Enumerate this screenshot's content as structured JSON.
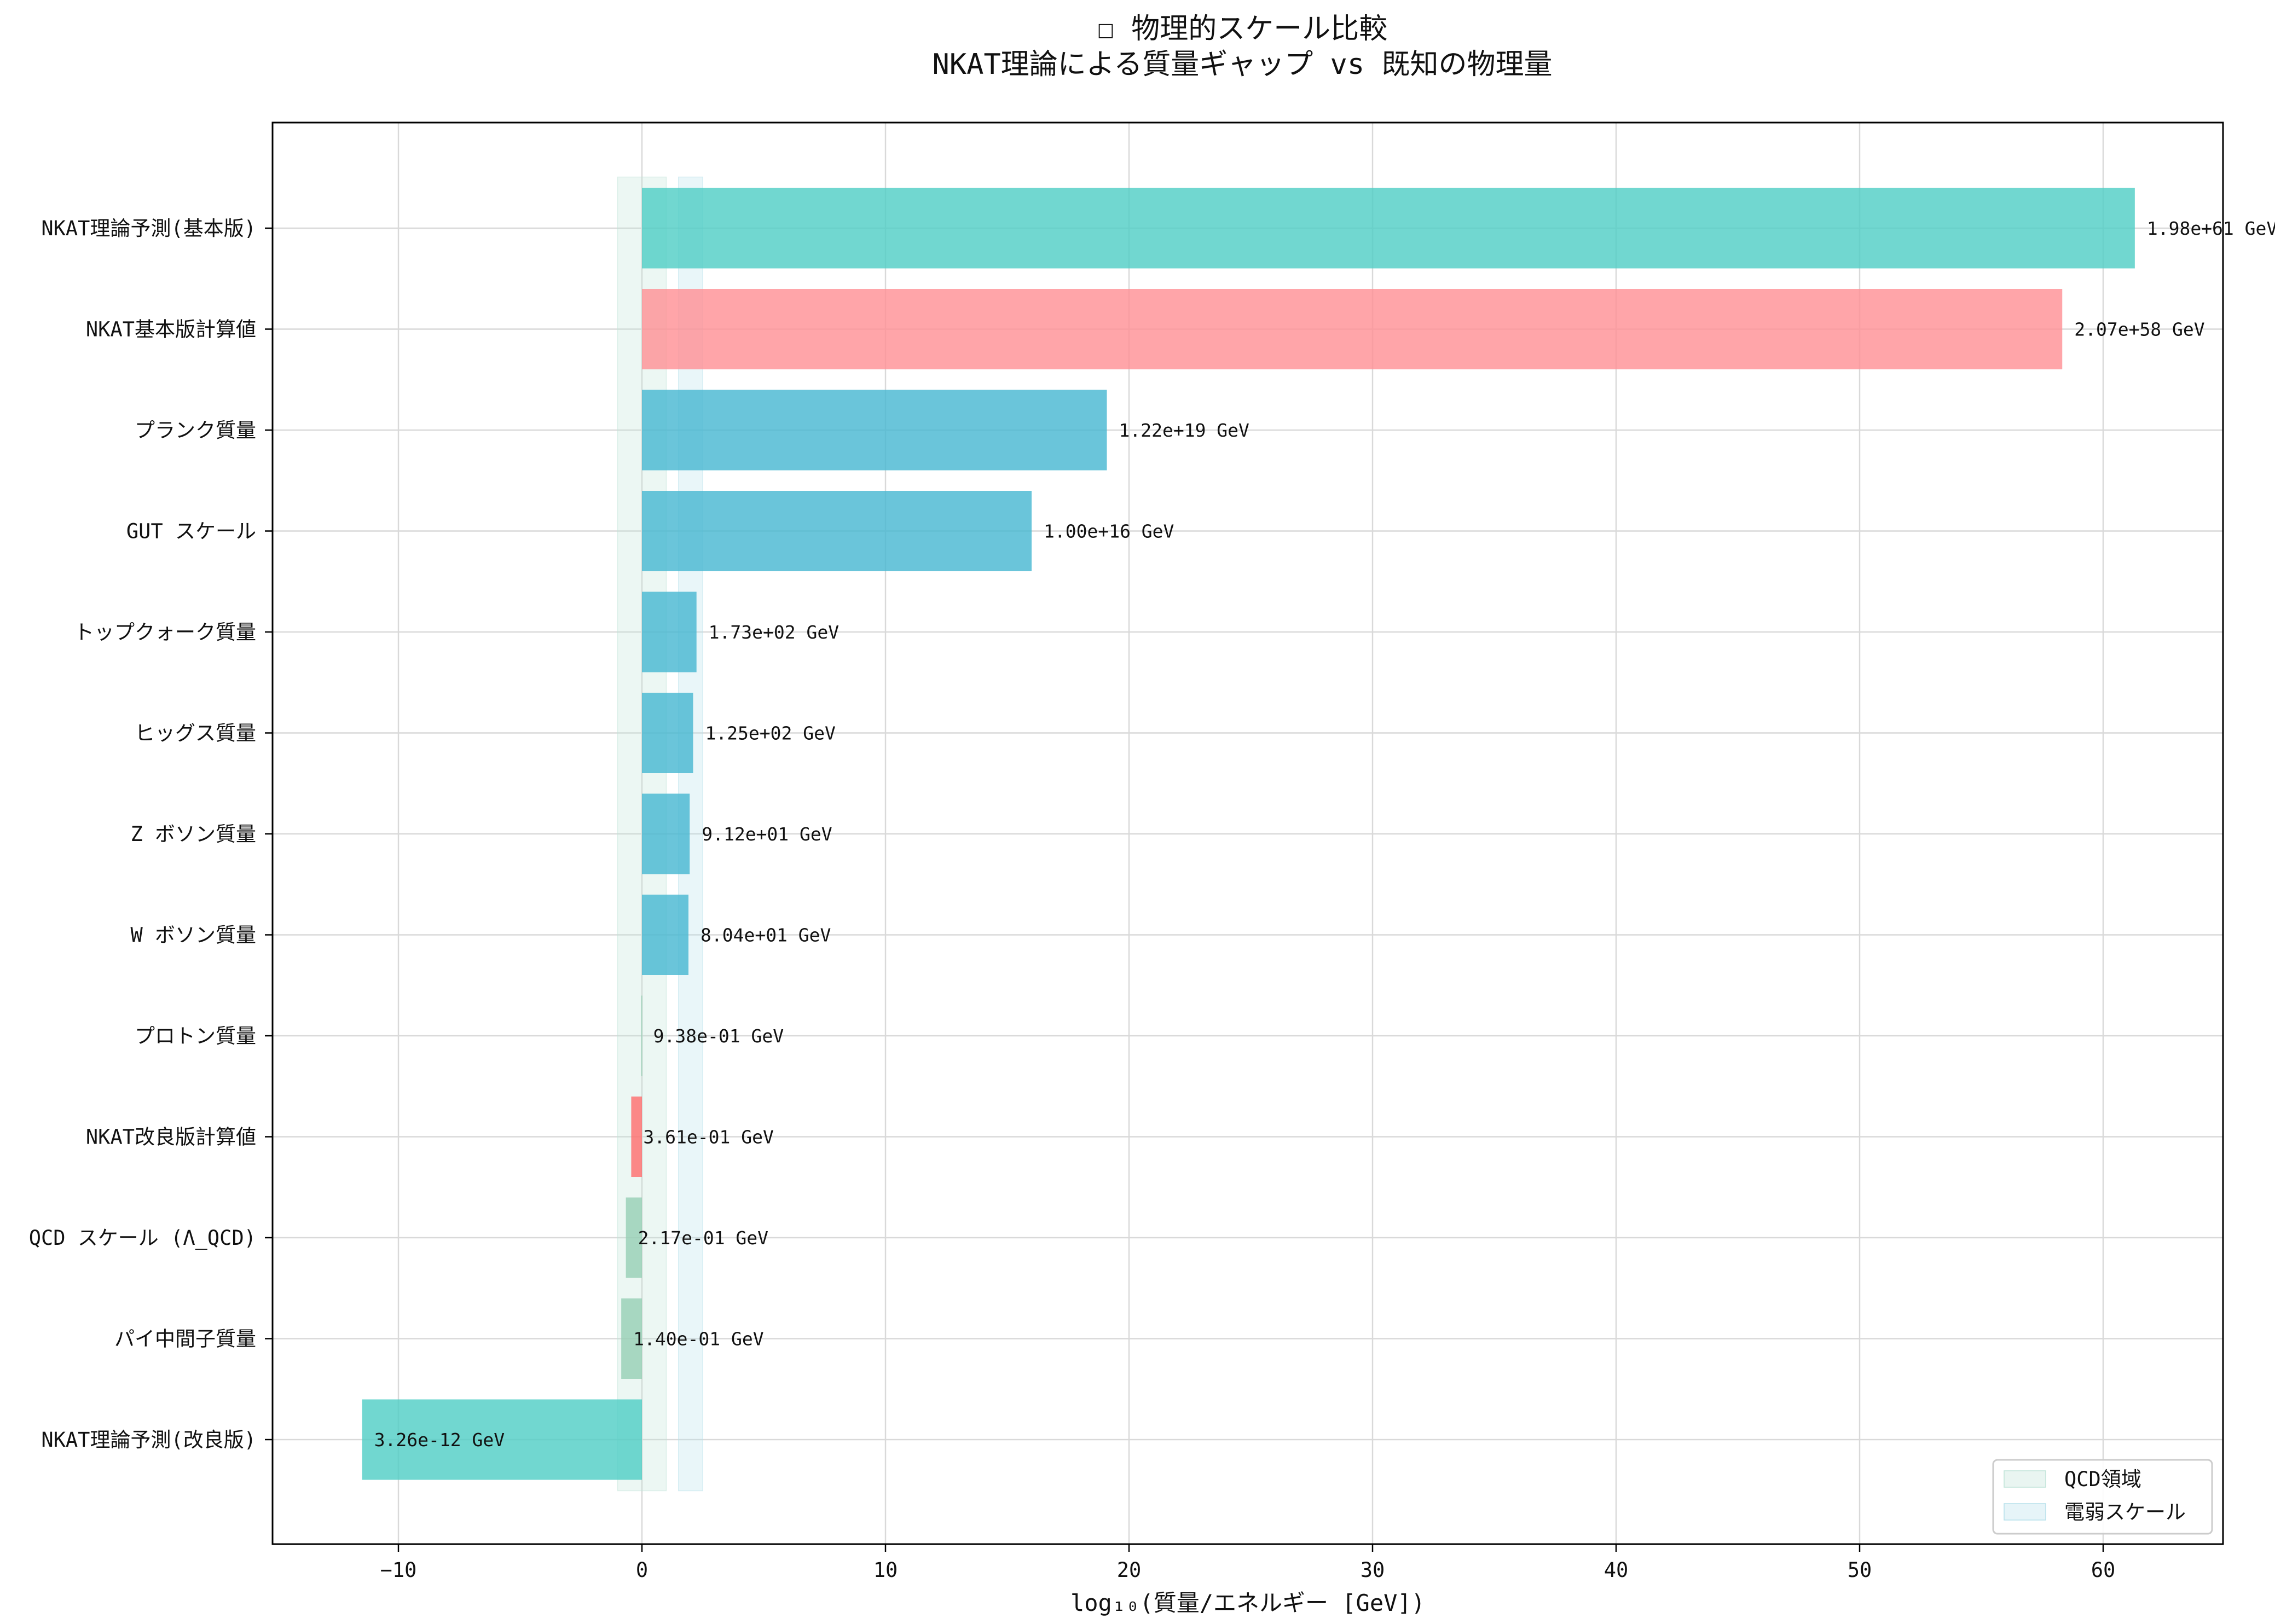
{
  "chart_data": {
    "type": "bar",
    "orientation": "horizontal",
    "title_lines": [
      "☐ 物理的スケール比較",
      "NKAT理論による質量ギャップ vs 既知の物理量"
    ],
    "xlabel": "log₁₀(質量/エネルギー [GeV])",
    "ylabel": "",
    "xlim": [
      -15.2,
      65.0
    ],
    "xticks": [
      -10,
      0,
      10,
      20,
      30,
      40,
      50,
      60
    ],
    "xtick_labels": [
      "−10",
      "0",
      "10",
      "20",
      "30",
      "40",
      "50",
      "60"
    ],
    "grid": true,
    "legend_position": "bottom-right",
    "bands": [
      {
        "name": "QCD領域",
        "from": -1.0,
        "to": 1.0,
        "color": "#bfe3d8"
      },
      {
        "name": "電弱スケール",
        "from": 1.5,
        "to": 2.5,
        "color": "#b6e0ea"
      }
    ],
    "bars": [
      {
        "label": "NKAT理論予測(基本版)",
        "value": 61.3,
        "value_label": "1.98e+61 GeV",
        "color": "#4ecdc4"
      },
      {
        "label": "NKAT基本版計算値",
        "value": 58.32,
        "value_label": "2.07e+58 GeV",
        "color": "#ff8e94"
      },
      {
        "label": "プランク質量",
        "value": 19.09,
        "value_label": "1.22e+19 GeV",
        "color": "#45b7d1"
      },
      {
        "label": "GUT スケール",
        "value": 16.0,
        "value_label": "1.00e+16 GeV",
        "color": "#45b7d1"
      },
      {
        "label": "トップクォーク質量",
        "value": 2.24,
        "value_label": "1.73e+02 GeV",
        "color": "#45b7d1"
      },
      {
        "label": "ヒッグス質量",
        "value": 2.1,
        "value_label": "1.25e+02 GeV",
        "color": "#45b7d1"
      },
      {
        "label": "Z ボソン質量",
        "value": 1.96,
        "value_label": "9.12e+01 GeV",
        "color": "#45b7d1"
      },
      {
        "label": "W ボソン質量",
        "value": 1.91,
        "value_label": "8.04e+01 GeV",
        "color": "#45b7d1"
      },
      {
        "label": "プロトン質量",
        "value": -0.03,
        "value_label": "9.38e-01 GeV",
        "color": "#96ceb4"
      },
      {
        "label": "NKAT改良版計算値",
        "value": -0.44,
        "value_label": "3.61e-01 GeV",
        "color": "#ff6b6b"
      },
      {
        "label": "QCD スケール (Λ_QCD)",
        "value": -0.66,
        "value_label": "2.17e-01 GeV",
        "color": "#96ceb4"
      },
      {
        "label": "パイ中間子質量",
        "value": -0.85,
        "value_label": "1.40e-01 GeV",
        "color": "#96ceb4"
      },
      {
        "label": "NKAT理論予測(改良版)",
        "value": -11.49,
        "value_label": "3.26e-12 GeV",
        "color": "#4ecdc4"
      }
    ]
  }
}
